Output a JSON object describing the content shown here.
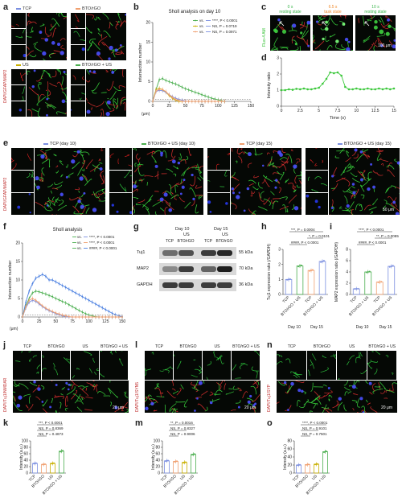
{
  "labels": [
    "a",
    "b",
    "c",
    "d",
    "e",
    "f",
    "g",
    "h",
    "i",
    "j",
    "k",
    "l",
    "m",
    "n",
    "o"
  ],
  "panel_a": {
    "groups": [
      "TCP",
      "BTO/rGO",
      "US",
      "BTO/rGO + US"
    ],
    "side_label": "DAPI/GFAP/MAP2",
    "colors": [
      "#7b8fe0",
      "#f0a070",
      "#c9b000",
      "#4caf50"
    ]
  },
  "panel_b": {
    "title": "Sholl analysis on day 10",
    "ylabel": "Intersection number",
    "xlabel": "(μm)",
    "legend": [
      {
        "text": "vs. ",
        "tail": "****, P < 0.0001"
      },
      {
        "text": "vs. ",
        "tail": "NS, P = 0.0719"
      },
      {
        "text": "vs. ",
        "tail": "NS, P = 0.0971"
      }
    ]
  },
  "panel_c": {
    "label": "Fluo-4 AM",
    "states": [
      "0 s\nresting state",
      "6.5 s\ntask state",
      "10 s\nresting state"
    ],
    "state_times": [
      "0 s",
      "6.5 s",
      "10 s"
    ],
    "state_names": [
      "resting state",
      "task state",
      "resting state"
    ],
    "scale": "100 μm"
  },
  "panel_d": {
    "ylabel": "Intensity ratio",
    "xlabel": "Time (s)"
  },
  "panel_e": {
    "groups": [
      "TCP (day 10)",
      "BTO/rGO + US (day 10)",
      "TCP (day 15)",
      "BTO/rGO + US (day 15)"
    ],
    "side_label": "DAPI/GFAP/MAP2",
    "scale": "50 μm"
  },
  "panel_f": {
    "title": "Sholl analysis",
    "ylabel": "Intersection number",
    "xlabel": "(μm)",
    "legend": [
      "****, P < 0.0001",
      "****, P < 0.0001",
      "####, P < 0.0001"
    ]
  },
  "panel_g": {
    "days": [
      "Day 10",
      "Day 15"
    ],
    "us": "US",
    "lanes": [
      "TCP",
      "BTO/rGO",
      "TCP",
      "BTO/rGO"
    ],
    "rows": [
      {
        "name": "Tuj1",
        "kda": "55 kDa"
      },
      {
        "name": "MAP2",
        "kda": "70 kDa"
      },
      {
        "name": "GAPDH",
        "kda": "36 kDa"
      }
    ]
  },
  "panel_h": {
    "ylabel": "Tuj1 expression ratio (/GAPDH)",
    "sig": [
      "***, P = 0.0004",
      "*, P = 0.0101",
      "####, P < 0.0001"
    ],
    "xlabels": [
      "TCP",
      "BTO/rGO + US",
      "TCP",
      "BTO/rGO + US"
    ],
    "days": [
      "Day 10",
      "Day 15"
    ]
  },
  "panel_i": {
    "ylabel": "MAP2 expression ratio (/GAPDH)",
    "sig": [
      "****, P < 0.0001",
      "**, P = 0.0085",
      "####, P < 0.0001"
    ],
    "xlabels": [
      "TCP",
      "BTO/rGO + US",
      "TCP",
      "BTO/rGO + US"
    ],
    "days": [
      "Day 10",
      "Day 15"
    ]
  },
  "micro_groups": [
    "TCP",
    "BTO/rGO",
    "US",
    "BTO/rGO + US"
  ],
  "panel_j": {
    "side": "DAPI/Tuj1/NMDAR",
    "scale": "20 μm"
  },
  "panel_l": {
    "side": "DAPI/Tuj1/SYN5",
    "scale": "20 μm"
  },
  "panel_n": {
    "side": "DAPI/Tuj1/SYP",
    "scale": "20 μm"
  },
  "panel_k": {
    "ylabel": "Intensity (a.u.)",
    "sig": [
      "***, P < 0.0001",
      "NS, P = 0.8369",
      "NS, P = 0.4873"
    ],
    "xlabels": [
      "TCP",
      "BTO/rGO",
      "US",
      "BTO/rGO + US"
    ]
  },
  "panel_m": {
    "ylabel": "Intensity (a.u.)",
    "sig": [
      "**, P = 0.0016",
      "NS, P = 0.8327",
      "NS, P = 0.9006"
    ],
    "xlabels": [
      "TCP",
      "BTO/rGO",
      "US",
      "BTO/rGO + US"
    ]
  },
  "panel_o": {
    "ylabel": "Intensity (a.u.)",
    "sig": [
      "****, P < 0.0001",
      "NS, P = 0.9101",
      "NS, P = 0.7501"
    ],
    "xlabels": [
      "TCP",
      "BTO/rGO",
      "US",
      "BTO/rGO + US"
    ]
  },
  "chart_data": [
    {
      "id": "b",
      "type": "line",
      "title": "Sholl analysis on day 10",
      "xlabel": "(μm)",
      "ylabel": "Intersection number",
      "xlim": [
        0,
        150
      ],
      "ylim": [
        0,
        20
      ],
      "xticks": [
        0,
        25,
        50,
        75,
        100,
        125,
        150
      ],
      "yticks": [
        0,
        5,
        10,
        15,
        20
      ],
      "x": [
        0,
        5,
        10,
        15,
        20,
        25,
        30,
        35,
        40,
        45,
        50,
        55,
        60,
        65,
        70,
        75,
        80,
        85,
        90,
        95,
        100,
        105,
        110
      ],
      "series": [
        {
          "color": "#4caf50",
          "values": [
            0,
            3,
            5.5,
            5.8,
            5.3,
            5,
            4.7,
            4.4,
            4,
            3.6,
            3.2,
            2.9,
            2.6,
            2.3,
            2,
            1.7,
            1.4,
            1.1,
            0.8,
            0.6,
            0.4,
            0.2,
            0
          ]
        },
        {
          "color": "#c9b000",
          "values": [
            0,
            3,
            3.3,
            3,
            2.3,
            1.5,
            0.8,
            0.3,
            0,
            0,
            0,
            0,
            0,
            0,
            0,
            0,
            0,
            0,
            0,
            0,
            0,
            0,
            0
          ]
        },
        {
          "color": "#7b8fe0",
          "values": [
            0,
            2.5,
            2.8,
            2.7,
            2.3,
            1.7,
            1.2,
            0.8,
            0.5,
            0.3,
            0.1,
            0,
            0,
            0,
            0,
            0,
            0,
            0,
            0,
            0,
            0,
            0,
            0
          ]
        },
        {
          "color": "#f0a070",
          "values": [
            0,
            2.6,
            3.1,
            3,
            2.5,
            1.7,
            1,
            0.5,
            0.2,
            0,
            0,
            0,
            0,
            0,
            0,
            0,
            0,
            0,
            0,
            0,
            0,
            0,
            0
          ]
        }
      ]
    },
    {
      "id": "d",
      "type": "line",
      "xlabel": "Time (s)",
      "ylabel": "Intensity ratio",
      "xlim": [
        0,
        15
      ],
      "ylim": [
        0,
        3
      ],
      "xticks": [
        0,
        2.5,
        5,
        7.5,
        10,
        12.5,
        15
      ],
      "yticks": [
        0,
        1,
        2,
        3
      ],
      "x": [
        0,
        0.5,
        1,
        1.5,
        2,
        2.5,
        3,
        3.5,
        4,
        4.5,
        5,
        5.5,
        6,
        6.5,
        7,
        7.5,
        8,
        8.5,
        9,
        9.5,
        10,
        10.5,
        11,
        11.5,
        12,
        12.5,
        13,
        13.5,
        14,
        14.5,
        15
      ],
      "series": [
        {
          "color": "#3cc83c",
          "values": [
            1,
            1,
            1.05,
            1.02,
            1.08,
            1.05,
            1.1,
            1.05,
            1.05,
            1.1,
            1.15,
            1.4,
            1.7,
            2.1,
            2.05,
            2.1,
            1.9,
            1.2,
            1.05,
            1.05,
            1.1,
            1.05,
            1.05,
            1.1,
            1.05,
            1.05,
            1.1,
            1.05,
            1.1,
            1.05,
            1.1
          ]
        }
      ]
    },
    {
      "id": "f",
      "type": "line",
      "title": "Sholl analysis",
      "xlabel": "(μm)",
      "ylabel": "Intersection number",
      "xlim": [
        0,
        150
      ],
      "ylim": [
        0,
        20
      ],
      "xticks": [
        0,
        25,
        50,
        75,
        100,
        125,
        150
      ],
      "yticks": [
        0,
        5,
        10,
        15,
        20
      ],
      "x": [
        0,
        5,
        10,
        15,
        20,
        25,
        30,
        35,
        40,
        45,
        50,
        55,
        60,
        65,
        70,
        75,
        80,
        85,
        90,
        95,
        100,
        105,
        110,
        115,
        120,
        125,
        130,
        135,
        140,
        145,
        150
      ],
      "series": [
        {
          "color": "#4a7fe0",
          "values": [
            0,
            4,
            7,
            9,
            10.5,
            11,
            11.5,
            11,
            10,
            10,
            9.5,
            9,
            8.5,
            8,
            7.5,
            7,
            6.5,
            6,
            5.5,
            5,
            4.5,
            4,
            3.5,
            3,
            2.5,
            2,
            1.5,
            1,
            0.6,
            0.3,
            0.1
          ]
        },
        {
          "color": "#4caf50",
          "values": [
            0,
            3,
            5,
            6.5,
            7,
            6.8,
            6.5,
            6.2,
            5.8,
            5.5,
            5,
            4.6,
            4.2,
            3.8,
            3.3,
            2.8,
            2.3,
            1.8,
            1.3,
            0.9,
            0.5,
            0.3,
            0.1,
            0,
            0,
            0,
            0,
            0,
            0,
            0,
            0
          ]
        },
        {
          "color": "#7b8fe0",
          "values": [
            0,
            2.5,
            4,
            4.5,
            4.2,
            3.5,
            2.8,
            2.2,
            1.7,
            1.3,
            0.9,
            0.6,
            0.3,
            0.1,
            0,
            0,
            0,
            0,
            0,
            0,
            0,
            0,
            0,
            0,
            0,
            0,
            0,
            0,
            0,
            0,
            0
          ]
        },
        {
          "color": "#f0a070",
          "values": [
            0,
            2.8,
            4.5,
            5,
            4.5,
            3.8,
            3,
            2.4,
            1.9,
            1.5,
            1.1,
            0.8,
            0.5,
            0.3,
            0.1,
            0,
            0,
            0,
            0,
            0,
            0,
            0,
            0,
            0,
            0,
            0,
            0,
            0,
            0,
            0,
            0
          ]
        }
      ]
    },
    {
      "id": "h",
      "type": "bar",
      "categories": [
        "TCP",
        "BTO/rGO + US",
        "TCP",
        "BTO/rGO + US"
      ],
      "values": [
        1,
        1.9,
        1.6,
        2.2
      ],
      "colors": [
        "#7b8fe0",
        "#4caf50",
        "#f0a070",
        "#7b8fe0"
      ],
      "ylim": [
        0,
        3
      ],
      "yticks": [
        0,
        1,
        2,
        3
      ]
    },
    {
      "id": "i",
      "type": "bar",
      "categories": [
        "TCP",
        "BTO/rGO + US",
        "TCP",
        "BTO/rGO + US"
      ],
      "values": [
        1,
        4,
        2.2,
        5
      ],
      "colors": [
        "#7b8fe0",
        "#4caf50",
        "#f0a070",
        "#7b8fe0"
      ],
      "ylim": [
        0,
        8
      ],
      "yticks": [
        0,
        2,
        4,
        6,
        8
      ]
    },
    {
      "id": "k",
      "type": "bar",
      "categories": [
        "TCP",
        "BTO/rGO",
        "US",
        "BTO/rGO + US"
      ],
      "values": [
        30,
        27,
        30,
        68
      ],
      "colors": [
        "#7b8fe0",
        "#f0a070",
        "#c9b000",
        "#4caf50"
      ],
      "ylim": [
        0,
        100
      ],
      "yticks": [
        0,
        20,
        40,
        60,
        80,
        100
      ]
    },
    {
      "id": "m",
      "type": "bar",
      "categories": [
        "TCP",
        "BTO/rGO",
        "US",
        "BTO/rGO + US"
      ],
      "values": [
        38,
        36,
        33,
        58
      ],
      "colors": [
        "#7b8fe0",
        "#f0a070",
        "#c9b000",
        "#4caf50"
      ],
      "ylim": [
        0,
        100
      ],
      "yticks": [
        0,
        20,
        40,
        60,
        80,
        100
      ]
    },
    {
      "id": "o",
      "type": "bar",
      "categories": [
        "TCP",
        "BTO/rGO",
        "US",
        "BTO/rGO + US"
      ],
      "values": [
        20,
        21,
        22,
        53
      ],
      "colors": [
        "#7b8fe0",
        "#f0a070",
        "#c9b000",
        "#4caf50"
      ],
      "ylim": [
        0,
        80
      ],
      "yticks": [
        0,
        20,
        40,
        60,
        80
      ]
    }
  ]
}
